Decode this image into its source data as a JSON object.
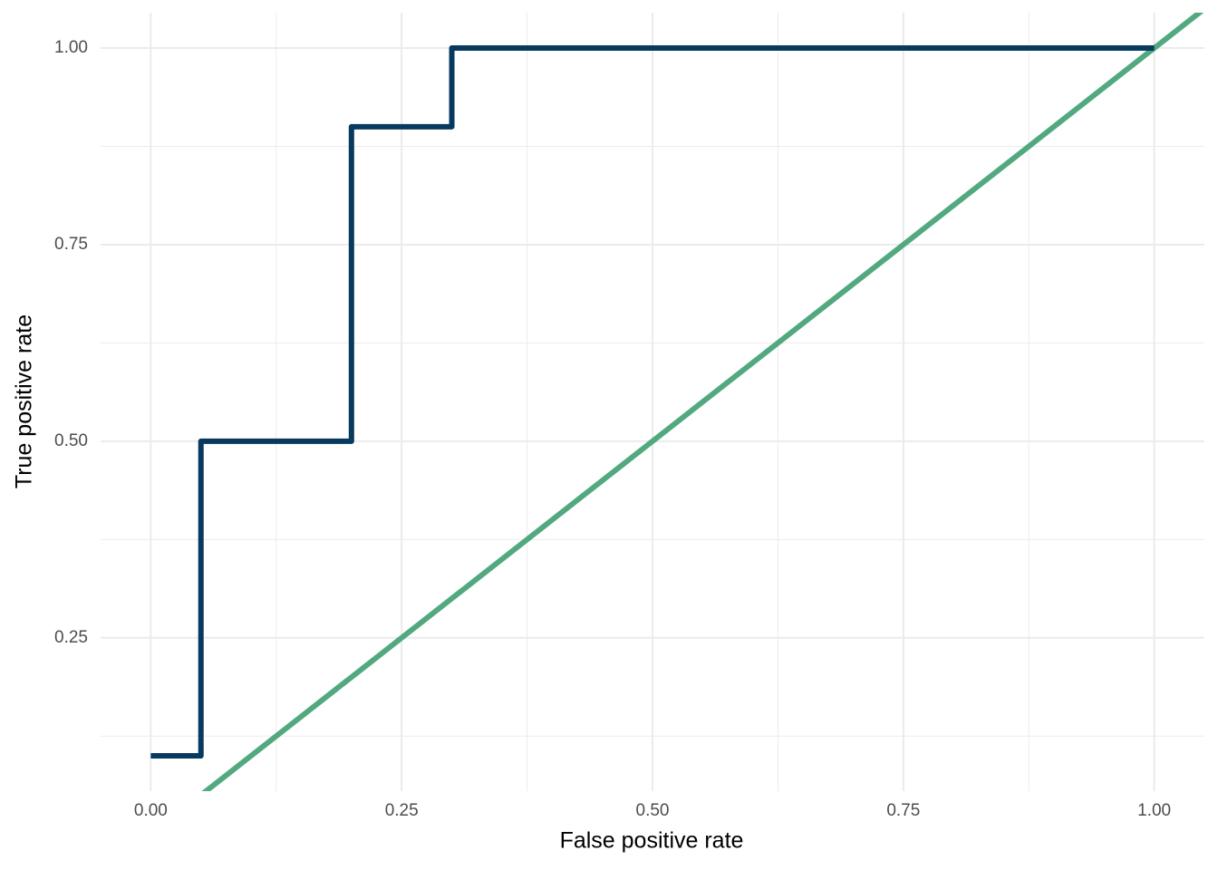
{
  "chart_data": {
    "type": "line",
    "xlabel": "False positive rate",
    "ylabel": "True positive rate",
    "series": [
      {
        "color": "#08395f",
        "step": true,
        "x": [
          0,
          0.05,
          0.05,
          0.2,
          0.2,
          0.3,
          0.3,
          1
        ],
        "values": [
          0.1,
          0.1,
          0.5,
          0.5,
          0.9,
          0.9,
          1,
          1
        ]
      }
    ],
    "abline": {
      "slope": 1,
      "intercept": 0,
      "color": "#52a97f"
    },
    "xlim": [
      -0.05,
      1.05
    ],
    "ylim": [
      0.055,
      1.045
    ],
    "xticks": [
      {
        "value": 0,
        "label": "0.00"
      },
      {
        "value": 0.25,
        "label": "0.25"
      },
      {
        "value": 0.5,
        "label": "0.50"
      },
      {
        "value": 0.75,
        "label": "0.75"
      },
      {
        "value": 1,
        "label": "1.00"
      }
    ],
    "yticks": [
      {
        "value": 0.25,
        "label": "0.25"
      },
      {
        "value": 0.5,
        "label": "0.50"
      },
      {
        "value": 0.75,
        "label": "0.75"
      },
      {
        "value": 1,
        "label": "1.00"
      }
    ],
    "xminorticks": [
      0.125,
      0.375,
      0.625,
      0.875
    ],
    "yminorticks": [
      0.125,
      0.375,
      0.625,
      0.875
    ],
    "grid": true
  }
}
